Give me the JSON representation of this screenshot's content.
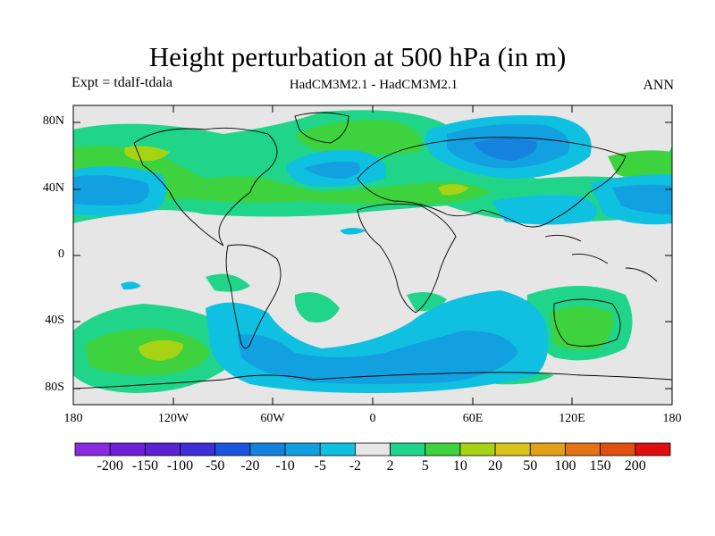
{
  "title": "Height perturbation at 500 hPa (in m)",
  "experiment": "Expt = tdalf-tdala",
  "models": "HadCM3M2.1 - HadCM3M2.1",
  "season": "ANN",
  "lat_ticks": [
    "80N",
    "40N",
    "0",
    "40S",
    "80S"
  ],
  "lon_ticks": [
    "180",
    "120W",
    "60W",
    "0",
    "60E",
    "120E",
    "180"
  ],
  "colorbar": {
    "labels": [
      "-200",
      "-150",
      "-100",
      "-50",
      "-20",
      "-10",
      "-5",
      "-2",
      "2",
      "5",
      "10",
      "20",
      "50",
      "100",
      "150",
      "200"
    ],
    "colors": [
      "#8a2be2",
      "#6f1fd8",
      "#5a22d0",
      "#3c2fd8",
      "#1a55e0",
      "#1582de",
      "#13a0e0",
      "#10c0e0",
      "#e6e6e6",
      "#20d48a",
      "#3ed23e",
      "#a6d414",
      "#d8c418",
      "#e2a016",
      "#e27414",
      "#e25010",
      "#e00e0e"
    ]
  },
  "colors": {
    "background": "#e6e6e6",
    "coast": "#000000"
  }
}
